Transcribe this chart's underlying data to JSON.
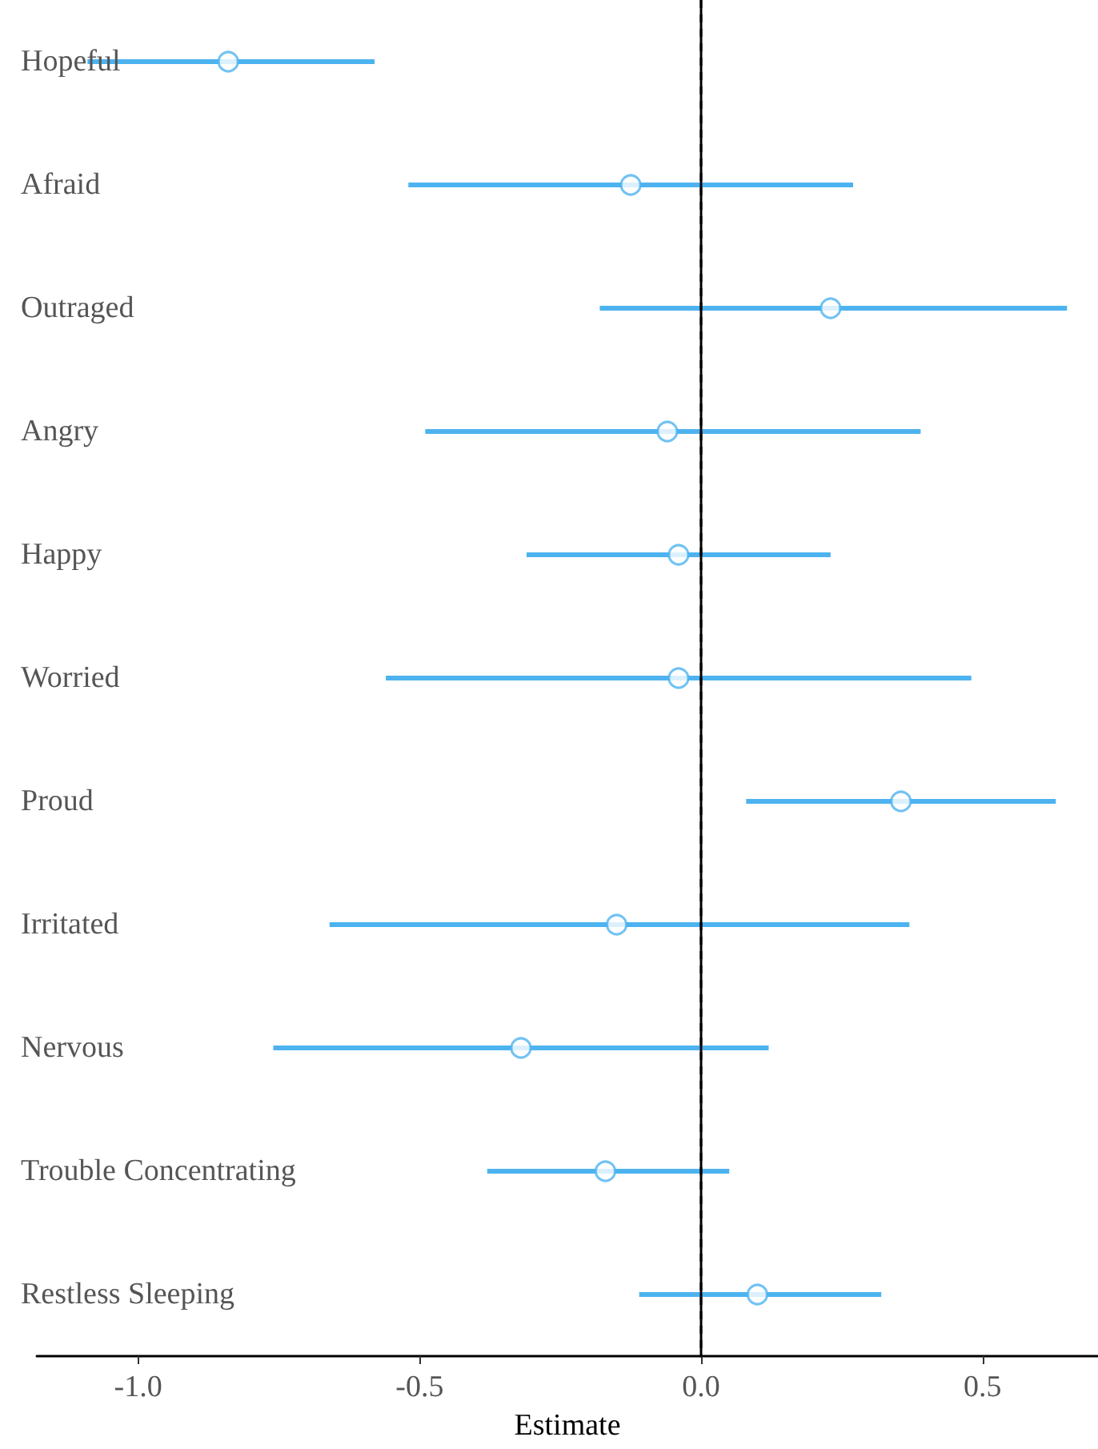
{
  "chart_data": {
    "type": "scatter",
    "orientation": "horizontal",
    "xlabel": "Estimate",
    "categories": [
      "Hopeful",
      "Afraid",
      "Outraged",
      "Angry",
      "Happy",
      "Worried",
      "Proud",
      "Irritated",
      "Nervous",
      "Trouble Concentrating",
      "Restless Sleeping"
    ],
    "series": [
      {
        "color": "#4db3f0",
        "values": [
          -0.84,
          -0.125,
          0.23,
          -0.06,
          -0.04,
          -0.04,
          0.355,
          -0.15,
          -0.32,
          -0.17,
          0.1
        ],
        "errors": [
          [
            -1.09,
            -0.58
          ],
          [
            -0.52,
            0.27
          ],
          [
            -0.18,
            0.65
          ],
          [
            -0.49,
            0.39
          ],
          [
            -0.31,
            0.23
          ],
          [
            -0.56,
            0.48
          ],
          [
            0.08,
            0.63
          ],
          [
            -0.66,
            0.37
          ],
          [
            -0.76,
            0.12
          ],
          [
            -0.38,
            0.05
          ],
          [
            -0.11,
            0.32
          ]
        ]
      }
    ],
    "xlim": [
      -1.18,
      0.705
    ],
    "xticks": [
      {
        "value": -1,
        "label": "-1.0"
      },
      -0.5,
      {
        "value": 0,
        "label": "0.0"
      },
      0.5
    ],
    "ref_lines": [
      {
        "axis": "x",
        "value": 0,
        "line_style": "dashed",
        "color": "#000000"
      }
    ],
    "grid": false,
    "marker": "circle"
  }
}
